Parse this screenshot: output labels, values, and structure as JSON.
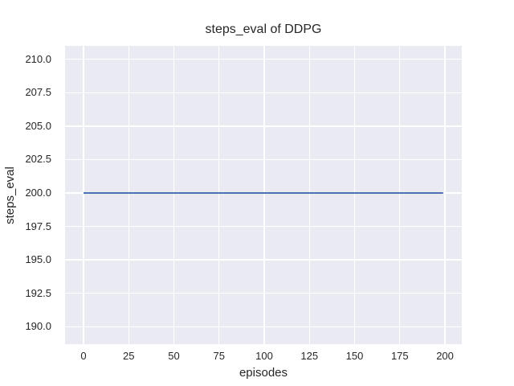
{
  "figure": {
    "title": "steps_eval of DDPG"
  },
  "colors": {
    "figure_bg": "#ffffff",
    "axes_bg": "#eaeaf2",
    "grid": "#ffffff",
    "text": "#262626",
    "line": "#4c72b0"
  },
  "chart_data": {
    "type": "line",
    "title": "steps_eval of DDPG",
    "xlabel": "episodes",
    "ylabel": "steps_eval",
    "xlim": [
      -10.2,
      209.3
    ],
    "ylim": [
      188.7,
      211.0
    ],
    "xticks": [
      0,
      25,
      50,
      75,
      100,
      125,
      150,
      175,
      200
    ],
    "xtick_labels": [
      "0",
      "25",
      "50",
      "75",
      "100",
      "125",
      "150",
      "175",
      "200"
    ],
    "yticks": [
      190,
      192.5,
      195,
      197.5,
      200,
      202.5,
      205,
      207.5,
      210
    ],
    "ytick_labels": [
      "190.0",
      "192.5",
      "195.0",
      "197.5",
      "200.0",
      "202.5",
      "205.0",
      "207.5",
      "210.0"
    ],
    "grid": true,
    "legend": "none",
    "series": [
      {
        "name": "steps_eval",
        "color": "#4c72b0",
        "linewidth": 2,
        "x": [
          0,
          199
        ],
        "values": [
          200,
          200
        ],
        "constant_value": 200
      }
    ]
  }
}
